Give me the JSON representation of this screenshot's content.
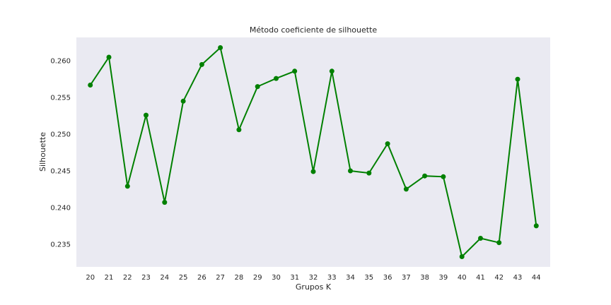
{
  "chart_data": {
    "type": "line",
    "title": "Método coeficiente de silhouette",
    "xlabel": "Grupos K",
    "ylabel": "Silhouette",
    "x": [
      20,
      21,
      22,
      23,
      24,
      25,
      26,
      27,
      28,
      29,
      30,
      31,
      32,
      33,
      34,
      35,
      36,
      37,
      38,
      39,
      40,
      41,
      42,
      43,
      44
    ],
    "series": [
      {
        "values": [
          0.2567,
          0.2605,
          0.2429,
          0.2526,
          0.2407,
          0.2545,
          0.2595,
          0.2618,
          0.2506,
          0.2565,
          0.2576,
          0.2586,
          0.2449,
          0.2586,
          0.245,
          0.2447,
          0.2487,
          0.2425,
          0.2443,
          0.2442,
          0.2333,
          0.2358,
          0.2352,
          0.2575,
          0.2375
        ],
        "color": "#008000"
      }
    ],
    "xticks": [
      "20",
      "21",
      "22",
      "23",
      "24",
      "25",
      "26",
      "27",
      "28",
      "29",
      "30",
      "31",
      "32",
      "33",
      "34",
      "35",
      "36",
      "37",
      "38",
      "39",
      "40",
      "41",
      "42",
      "43",
      "44"
    ],
    "yticks": [
      "0.235",
      "0.240",
      "0.245",
      "0.250",
      "0.255",
      "0.260"
    ],
    "ytick_values": [
      0.235,
      0.24,
      0.245,
      0.25,
      0.255,
      0.26
    ],
    "xlim": [
      19.25,
      44.75
    ],
    "ylim": [
      0.2319,
      0.2632
    ],
    "grid": false,
    "background": "#eaeaf2",
    "marker": "circle"
  }
}
